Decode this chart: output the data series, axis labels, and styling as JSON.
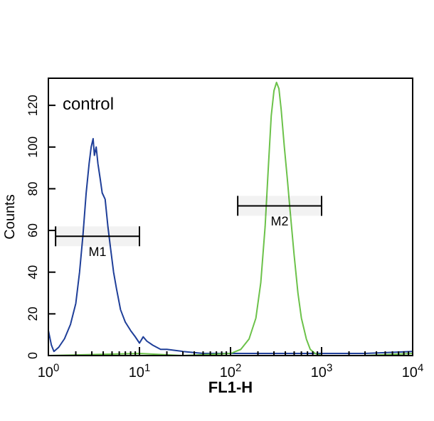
{
  "chart_data": {
    "type": "line",
    "xlabel": "FL1-H",
    "ylabel": "Counts",
    "log": "x",
    "xlim": [
      1,
      10000
    ],
    "ylim": [
      0,
      133
    ],
    "xticks": [
      {
        "value": 1,
        "label": "10$^{0}$"
      },
      {
        "value": 2,
        "label": null
      },
      {
        "value": 3,
        "label": null
      },
      {
        "value": 4,
        "label": null
      },
      {
        "value": 5,
        "label": null
      },
      {
        "value": 6,
        "label": null
      },
      {
        "value": 7,
        "label": null
      },
      {
        "value": 8,
        "label": null
      },
      {
        "value": 9,
        "label": null
      },
      {
        "value": 10,
        "label": "10$^{1}$"
      },
      {
        "value": 20,
        "label": null
      },
      {
        "value": 30,
        "label": null
      },
      {
        "value": 40,
        "label": null
      },
      {
        "value": 50,
        "label": null
      },
      {
        "value": 60,
        "label": null
      },
      {
        "value": 70,
        "label": null
      },
      {
        "value": 80,
        "label": null
      },
      {
        "value": 90,
        "label": null
      },
      {
        "value": 100,
        "label": "10$^{2}$"
      },
      {
        "value": 200,
        "label": null
      },
      {
        "value": 300,
        "label": null
      },
      {
        "value": 400,
        "label": null
      },
      {
        "value": 500,
        "label": null
      },
      {
        "value": 600,
        "label": null
      },
      {
        "value": 700,
        "label": null
      },
      {
        "value": 800,
        "label": null
      },
      {
        "value": 900,
        "label": null
      },
      {
        "value": 1000,
        "label": "10$^{3}$"
      },
      {
        "value": 2000,
        "label": null
      },
      {
        "value": 3000,
        "label": null
      },
      {
        "value": 4000,
        "label": null
      },
      {
        "value": 5000,
        "label": null
      },
      {
        "value": 6000,
        "label": null
      },
      {
        "value": 7000,
        "label": null
      },
      {
        "value": 8000,
        "label": null
      },
      {
        "value": 9000,
        "label": null
      },
      {
        "value": 10000,
        "label": "10$^{4}$"
      }
    ],
    "yticks": [
      0,
      20,
      40,
      60,
      80,
      100,
      120
    ],
    "grid": false,
    "marker": "none",
    "line_style": "solid",
    "series": [
      {
        "color": "#1f3f99",
        "x": [
          1,
          1.08,
          1.15,
          1.3,
          1.5,
          1.75,
          2,
          2.2,
          2.4,
          2.6,
          2.8,
          2.95,
          3.1,
          3.2,
          3.35,
          3.5,
          3.7,
          3.9,
          4.2,
          4.5,
          4.8,
          5.2,
          5.6,
          6.2,
          7,
          8,
          9,
          10,
          11,
          12,
          14,
          17,
          20,
          30,
          50,
          100,
          300,
          1000,
          3000,
          10000
        ],
        "values": [
          12,
          5,
          2,
          4,
          8,
          15,
          25,
          40,
          58,
          78,
          92,
          100,
          104,
          96,
          100,
          92,
          85,
          78,
          75,
          62,
          52,
          40,
          32,
          22,
          16,
          12,
          9,
          6,
          9,
          7,
          5,
          3,
          3,
          2,
          1,
          1,
          1,
          1,
          1,
          2
        ]
      },
      {
        "color": "#6cc24a",
        "x": [
          1,
          10,
          30,
          100,
          130,
          160,
          190,
          215,
          240,
          260,
          280,
          300,
          320,
          340,
          360,
          390,
          420,
          450,
          500,
          550,
          600,
          680,
          750,
          850,
          1000,
          3000,
          10000
        ],
        "values": [
          0,
          1,
          0,
          1,
          3,
          8,
          18,
          35,
          62,
          90,
          115,
          127,
          131,
          128,
          118,
          100,
          85,
          70,
          48,
          30,
          18,
          8,
          3,
          1,
          0,
          0,
          1
        ]
      }
    ],
    "annotations": [
      "control"
    ],
    "bands": [
      {
        "axis": "x",
        "from": 1.2,
        "to": 10,
        "label": "M1"
      },
      {
        "axis": "x",
        "from": 120,
        "to": 1000,
        "label": "M2"
      }
    ]
  }
}
